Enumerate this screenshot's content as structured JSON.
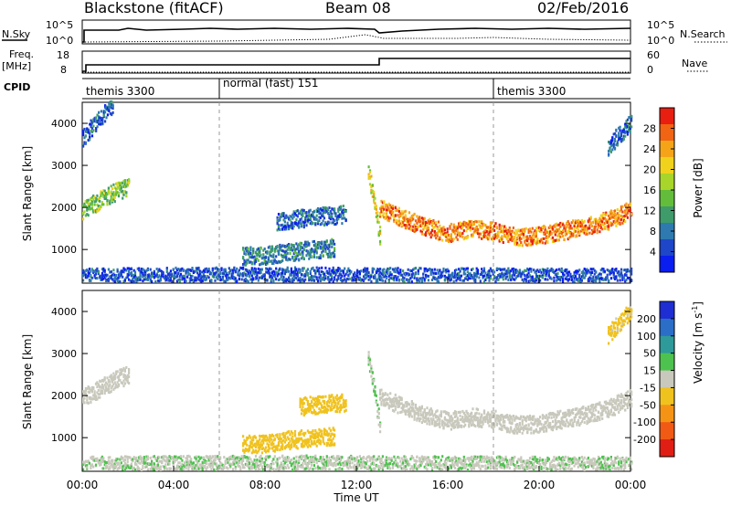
{
  "header": {
    "station": "Blackstone (fitACF)",
    "beam": "Beam 08",
    "date": "02/Feb/2016"
  },
  "panels": {
    "nsky_label": "N.Sky",
    "nsky_ticks": [
      "10^5",
      "10^0"
    ],
    "nsearch_label": "N.Search",
    "nsearch_ticks": [
      "10^5",
      "10^0"
    ],
    "freq_label": "Freq.",
    "freq_unit": "[MHz]",
    "freq_ticks": [
      "18",
      "8"
    ],
    "nave_label": "Nave",
    "nave_ticks": [
      "60",
      "0"
    ],
    "cpid_label": "CPID",
    "cpid_modes": [
      "themis 3300",
      "normal (fast) 151",
      "themis 3300"
    ]
  },
  "colors": {
    "power": [
      "#0a1ef0",
      "#1e46c8",
      "#2e7ab0",
      "#3f9c6a",
      "#63bd3a",
      "#a8d52a",
      "#f0d21c",
      "#f5a418",
      "#f06414",
      "#e81e10"
    ],
    "velocity": [
      "#1e2ed2",
      "#2a6ec8",
      "#2e9a9a",
      "#4ec24e",
      "#c8c8bc",
      "#f0c21e",
      "#f59414",
      "#f05a14",
      "#e01e14"
    ]
  },
  "chart_data": [
    {
      "type": "heatmap",
      "panel": "power",
      "xlabel": "",
      "ylabel": "Slant Range [km]",
      "xlim": [
        0,
        24
      ],
      "ylim": [
        200,
        4500
      ],
      "yticks": [
        "4000",
        "3000",
        "2000",
        "1000"
      ],
      "colorbar": {
        "label": "Power [dB]",
        "ticks": [
          "28",
          "24",
          "20",
          "16",
          "12",
          "8",
          "4"
        ],
        "range": [
          0,
          30
        ]
      },
      "series": [
        {
          "x": [
            0.0,
            0.5,
            1.0,
            1.5,
            2.0
          ],
          "y": [
            1900,
            2050,
            2200,
            2350,
            2450
          ],
          "value": 14
        },
        {
          "x": [
            0.0,
            0.3,
            0.6,
            1.0,
            1.3
          ],
          "y": [
            3600,
            3800,
            4000,
            4200,
            4400
          ],
          "value": 6
        },
        {
          "x": [
            7.0,
            8.0,
            9.0,
            10.0,
            11.0
          ],
          "y": [
            800,
            820,
            900,
            950,
            1000
          ],
          "value": 8
        },
        {
          "x": [
            8.5,
            9.5,
            10.5,
            11.5
          ],
          "y": [
            1600,
            1700,
            1750,
            1800
          ],
          "value": 6
        },
        {
          "x": [
            12.5,
            12.7,
            12.9,
            13.0
          ],
          "y": [
            2800,
            2300,
            1600,
            1300
          ],
          "value": 18
        },
        {
          "x": [
            13.0,
            14.0,
            15.0,
            16.0,
            17.0,
            18.0,
            19.0,
            20.0,
            21.0,
            22.0,
            23.0,
            24.0
          ],
          "y": [
            1950,
            1700,
            1500,
            1350,
            1450,
            1400,
            1250,
            1300,
            1400,
            1500,
            1650,
            1900
          ],
          "value": 24
        },
        {
          "x": [
            23.0,
            23.5,
            24.0
          ],
          "y": [
            3400,
            3700,
            4000
          ],
          "value": 6
        },
        {
          "x": [
            0.0,
            4.0,
            8.0,
            12.0,
            16.0,
            20.0,
            24.0
          ],
          "y": [
            300,
            320,
            330,
            320,
            310,
            300,
            300
          ],
          "value": 5
        }
      ]
    },
    {
      "type": "heatmap",
      "panel": "velocity",
      "xlabel": "Time UT",
      "ylabel": "Slant Range [km]",
      "xlim": [
        0,
        24
      ],
      "ylim": [
        200,
        4500
      ],
      "xticks": [
        "00:00",
        "04:00",
        "08:00",
        "12:00",
        "16:00",
        "20:00",
        "00:00"
      ],
      "yticks": [
        "4000",
        "3000",
        "2000",
        "1000"
      ],
      "colorbar": {
        "label": "Velocity [m s^-1]",
        "unit_parts": [
          "Velocity [m s",
          "-1",
          "]"
        ],
        "ticks": [
          "200",
          "100",
          "50",
          "15",
          "-15",
          "-50",
          "-100",
          "-200"
        ],
        "range": [
          -250,
          250
        ]
      },
      "series": [
        {
          "x": [
            0.0,
            0.5,
            1.0,
            1.5,
            2.0
          ],
          "y": [
            1900,
            2050,
            2200,
            2350,
            2450
          ],
          "value": 0
        },
        {
          "x": [
            7.0,
            8.0,
            9.0,
            10.0,
            11.0
          ],
          "y": [
            800,
            820,
            900,
            950,
            1000
          ],
          "value": -60
        },
        {
          "x": [
            9.5,
            10.5,
            11.5
          ],
          "y": [
            1700,
            1750,
            1800
          ],
          "value": -60
        },
        {
          "x": [
            12.5,
            12.7,
            12.9,
            13.0
          ],
          "y": [
            2800,
            2300,
            1600,
            1300
          ],
          "value": 30
        },
        {
          "x": [
            13.0,
            14.0,
            15.0,
            16.0,
            17.0,
            18.0,
            19.0,
            20.0,
            21.0,
            22.0,
            23.0,
            24.0
          ],
          "y": [
            1950,
            1700,
            1500,
            1350,
            1450,
            1400,
            1250,
            1300,
            1400,
            1500,
            1650,
            1900
          ],
          "value": 0
        },
        {
          "x": [
            23.0,
            23.5,
            24.0
          ],
          "y": [
            3400,
            3700,
            4000
          ],
          "value": -40
        },
        {
          "x": [
            0.0,
            4.0,
            8.0,
            12.0,
            16.0,
            20.0,
            24.0
          ],
          "y": [
            300,
            320,
            330,
            320,
            310,
            300,
            300
          ],
          "value": 20
        }
      ]
    }
  ]
}
